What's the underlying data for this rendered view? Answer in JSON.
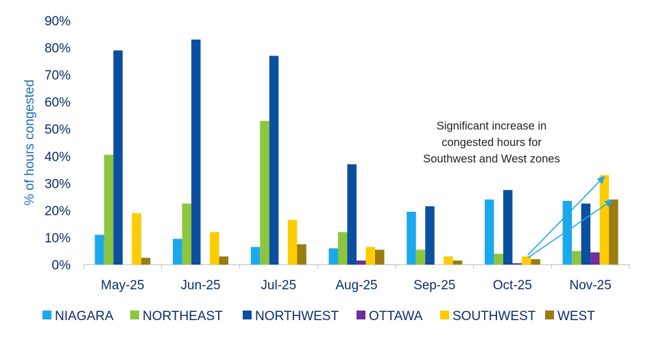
{
  "chart_data": {
    "type": "bar",
    "title": "",
    "xlabel": "",
    "ylabel": "% of hours congested",
    "ylim": [
      0,
      90
    ],
    "yticks": [
      "0%",
      "10%",
      "20%",
      "30%",
      "40%",
      "50%",
      "60%",
      "70%",
      "80%",
      "90%"
    ],
    "categories": [
      "May-25",
      "Jun-25",
      "Jul-25",
      "Aug-25",
      "Sep-25",
      "Oct-25",
      "Nov-25"
    ],
    "series": [
      {
        "name": "NIAGARA",
        "color": "#1ba8ec",
        "values": [
          11,
          9.5,
          6.5,
          6,
          19.5,
          24,
          23.5
        ]
      },
      {
        "name": "NORTHEAST",
        "color": "#8cc63f",
        "values": [
          40.5,
          22.5,
          53,
          12,
          5.5,
          4,
          5
        ]
      },
      {
        "name": "NORTHWEST",
        "color": "#0b4fa0",
        "values": [
          79,
          83,
          77,
          37,
          21.5,
          27.5,
          22.5
        ]
      },
      {
        "name": "OTTAWA",
        "color": "#6b2fa0",
        "values": [
          0,
          0,
          0,
          1.5,
          0,
          0.5,
          4.5
        ]
      },
      {
        "name": "SOUTHWEST",
        "color": "#ffcc00",
        "values": [
          19,
          12,
          16.5,
          6.5,
          3,
          3,
          33
        ]
      },
      {
        "name": "WEST",
        "color": "#9a7d12",
        "values": [
          2.5,
          3,
          7.5,
          5.5,
          1.5,
          2,
          24
        ]
      }
    ],
    "grid": false,
    "legend": "bottom",
    "annotation": {
      "lines": [
        "Significant increase in",
        "congested hours for",
        "Southwest and West zones"
      ],
      "arrow_color": "#1ba8ec"
    }
  }
}
